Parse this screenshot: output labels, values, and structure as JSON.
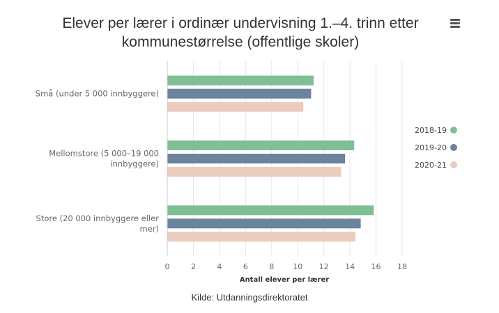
{
  "chart_data": {
    "type": "bar",
    "orientation": "horizontal",
    "title_lines": [
      "Elever per lærer i ordinær undervisning 1.–4. trinn etter",
      "kommunestørrelse (offentlige skoler)"
    ],
    "categories": [
      [
        "Små (under 5 000 innbyggere)"
      ],
      [
        "Mellomstore (5 000–19 000",
        "innbyggere)"
      ],
      [
        "Store (20 000 innbyggere eller",
        "mer)"
      ]
    ],
    "series": [
      {
        "name": "2018-19",
        "color": "#7fbf95",
        "values": [
          11.2,
          14.3,
          15.8
        ]
      },
      {
        "name": "2019-20",
        "color": "#6b849b",
        "values": [
          11.0,
          13.6,
          14.8
        ]
      },
      {
        "name": "2020-21",
        "color": "#ecccbf",
        "values": [
          10.4,
          13.3,
          14.4
        ]
      }
    ],
    "xlabel": "Antall elever per lærer",
    "xlim": [
      0,
      18
    ],
    "xticks": [
      "0",
      "2",
      "4",
      "6",
      "8",
      "10",
      "12",
      "14",
      "16",
      "18"
    ],
    "grid": true,
    "legend_position": "right"
  },
  "source": "Kilde: Utdanningsdirektoratet",
  "menu_icon": "hamburger-menu-icon"
}
